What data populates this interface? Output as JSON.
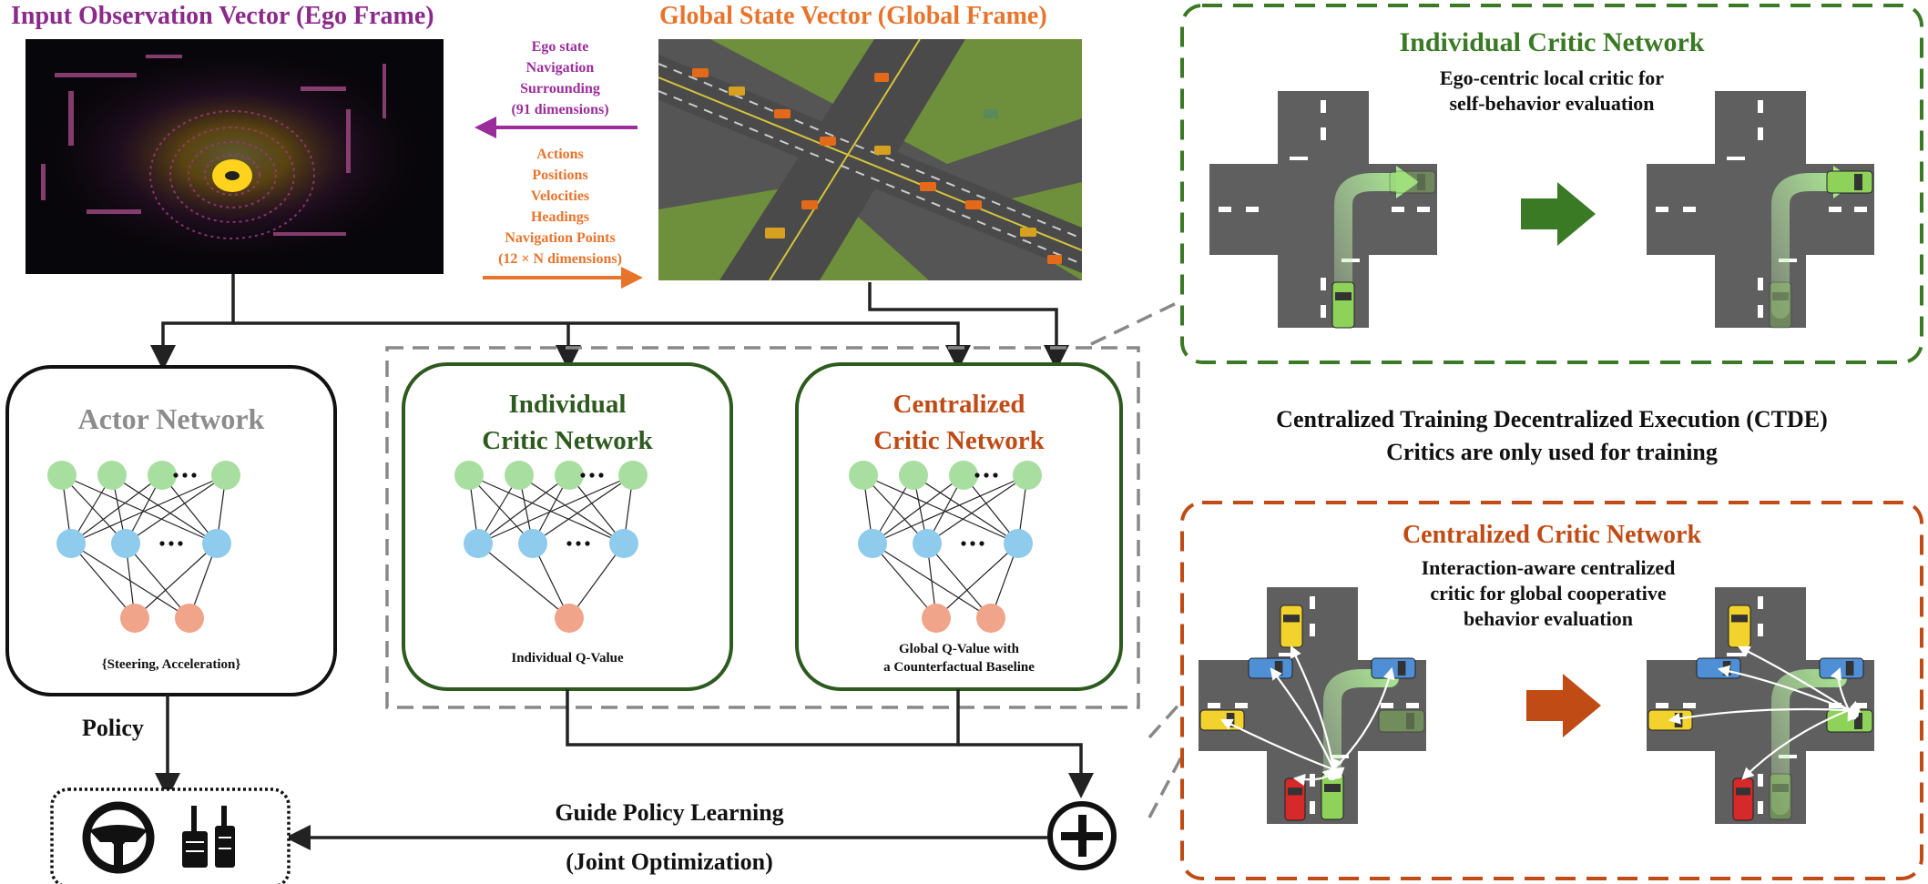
{
  "header": {
    "input_title": "Input Observation Vector (Ego Frame)",
    "global_title": "Global State Vector (Global Frame)"
  },
  "observation_arrow": {
    "lines": [
      "Ego state",
      "Navigation",
      "Surrounding",
      "(91 dimensions)"
    ]
  },
  "state_arrow": {
    "lines": [
      "Actions",
      "Positions",
      "Velocities",
      "Headings",
      "Navigation Points",
      "(12 × N dimensions)"
    ]
  },
  "actor": {
    "title": "Actor Network",
    "output": "{Steering, Acceleration}"
  },
  "individual_critic": {
    "title_line1": "Individual",
    "title_line2": "Critic Network",
    "output": "Individual Q-Value"
  },
  "centralized_critic": {
    "title_line1": "Centralized",
    "title_line2": "Critic Network",
    "output_line1": "Global Q-Value with",
    "output_line2": "a Counterfactual Baseline"
  },
  "flow": {
    "policy_label": "Policy",
    "guide_label": "Guide Policy Learning",
    "joint_label": "(Joint Optimization)"
  },
  "right_panel": {
    "individual_title": "Individual Critic Network",
    "individual_desc_line1": "Ego-centric local critic for",
    "individual_desc_line2": "self-behavior evaluation",
    "ctde_line1": "Centralized Training Decentralized Execution (CTDE)",
    "ctde_line2": "Critics are only used for training",
    "centralized_title": "Centralized Critic Network",
    "centralized_desc_line1": "Interaction-aware centralized",
    "centralized_desc_line2": "critic for global cooperative",
    "centralized_desc_line3": "behavior evaluation"
  },
  "colors": {
    "purple": "#8b2a8b",
    "orange": "#e8742c",
    "green": "#3a7a24",
    "dark_orange": "#c04b15",
    "gray_text": "#8c8c8c",
    "node_green": "#a8dea0",
    "node_blue": "#8fcbec",
    "node_orange": "#f0a58a"
  },
  "icons": [
    "steering-wheel-icon",
    "pedals-icon",
    "plus-icon",
    "right-arrow-icon"
  ]
}
